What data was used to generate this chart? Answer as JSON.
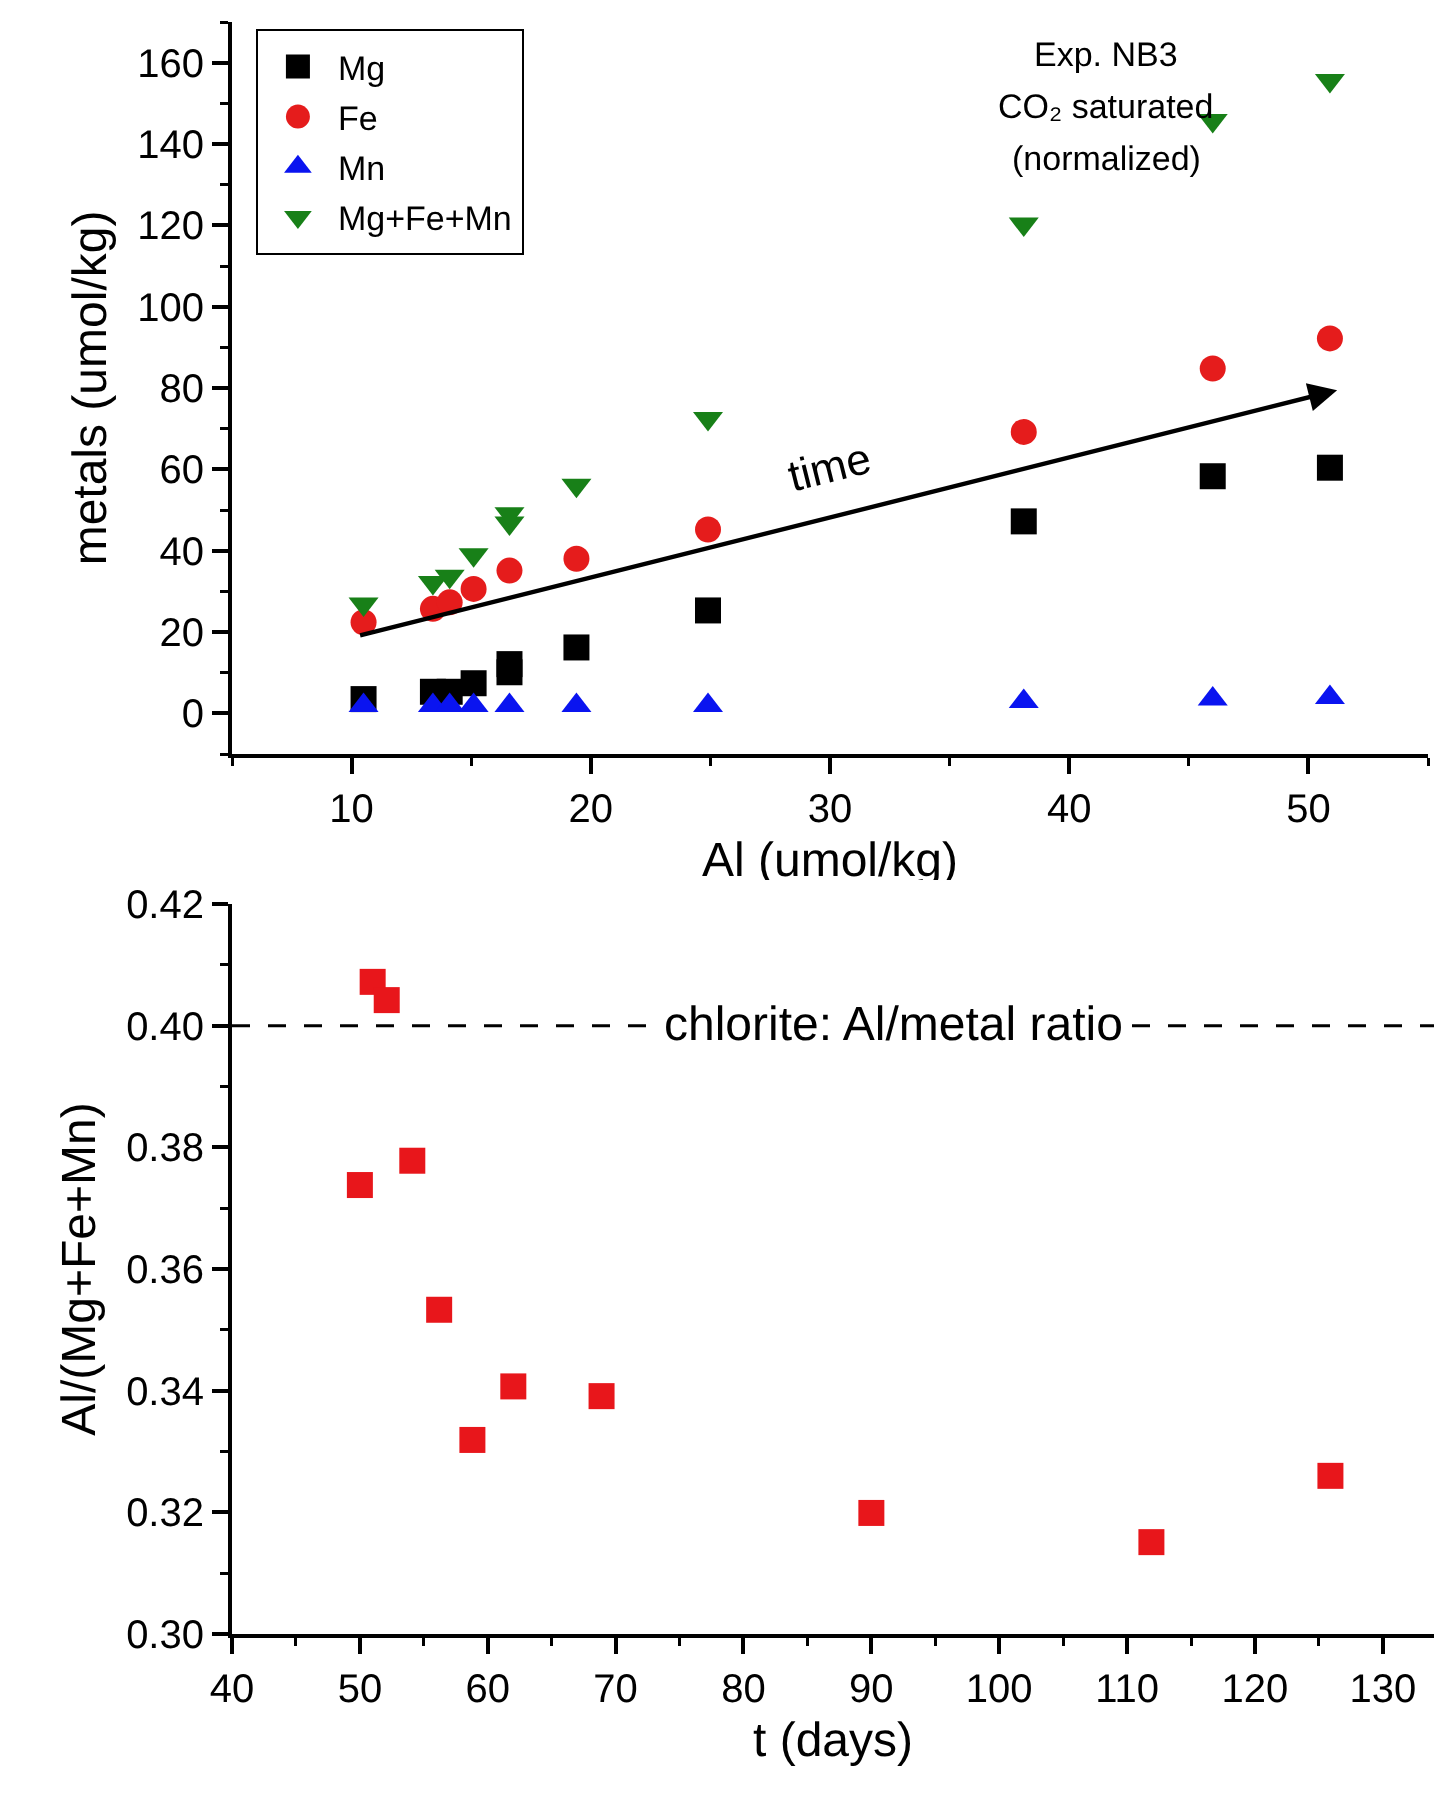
{
  "chart_data": [
    {
      "type": "scatter",
      "xlabel": "Al (umol/kg)",
      "ylabel": "metals (umol/kg)",
      "xlim": [
        5,
        55
      ],
      "xticks": [
        10,
        20,
        30,
        40,
        50
      ],
      "ylim": [
        -10,
        170
      ],
      "yticks": [
        0,
        20,
        40,
        60,
        80,
        100,
        120,
        140,
        160
      ],
      "grid": false,
      "legend": "top left",
      "annotations": [
        "Exp. NB3",
        "CO₂ saturated",
        "(normalized)",
        "time"
      ],
      "series": [
        {
          "name": "Mg",
          "color": "#000000",
          "marker": "square",
          "x": [
            10.5,
            13.4,
            14.1,
            15.1,
            16.6,
            16.6,
            19.4,
            24.9,
            38.1,
            46.0,
            50.9
          ],
          "values": [
            3.5,
            5.3,
            5.3,
            7.4,
            10.1,
            12.1,
            16.2,
            25.3,
            47.2,
            58.3,
            60.4
          ]
        },
        {
          "name": "Fe",
          "color": "#e51c1c",
          "marker": "circle",
          "x": [
            10.5,
            13.4,
            14.1,
            15.1,
            16.6,
            19.4,
            24.9,
            38.1,
            46.0,
            50.9
          ],
          "values": [
            22.4,
            25.7,
            27.3,
            30.6,
            35.1,
            38.0,
            45.2,
            69.2,
            84.8,
            92.2
          ]
        },
        {
          "name": "Mn",
          "color": "#0a14f0",
          "marker": "triangle",
          "x": [
            10.5,
            13.4,
            14.1,
            15.1,
            16.6,
            19.4,
            24.9,
            38.1,
            46.0,
            50.9
          ],
          "values": [
            1.9,
            1.9,
            1.9,
            1.9,
            1.9,
            1.9,
            1.9,
            2.9,
            3.5,
            3.9
          ]
        },
        {
          "name": "Mg+Fe+Mn",
          "color": "#188018",
          "marker": "triangle-down",
          "x": [
            10.5,
            13.4,
            14.1,
            15.1,
            16.6,
            16.6,
            19.4,
            24.9,
            38.1,
            46.0,
            50.9
          ],
          "values": [
            26.9,
            32.2,
            33.7,
            39.0,
            46.8,
            49.1,
            56.1,
            72.5,
            120.3,
            145.8,
            155.6
          ]
        }
      ]
    },
    {
      "type": "scatter",
      "xlabel": "t (days)",
      "ylabel": "Al/(Mg+Fe+Mn)",
      "xlim": [
        40,
        134
      ],
      "xticks": [
        40,
        50,
        60,
        70,
        80,
        90,
        100,
        110,
        120,
        130
      ],
      "ylim": [
        0.3,
        0.42
      ],
      "yticks": [
        {
          "value": 0.3,
          "label": "0.30"
        },
        0.32,
        0.34,
        0.36,
        0.38,
        {
          "value": 0.4,
          "label": "0.40"
        },
        0.42
      ],
      "grid": false,
      "legend": false,
      "ref_lines": [
        {
          "axis": "y",
          "value": 0.4,
          "label": "chlorite: Al/metal ratio",
          "line_style": "dashed",
          "color": "#000000"
        }
      ],
      "series": [
        {
          "color": "#e8161b",
          "marker": "square",
          "x": [
            50.0,
            51.0,
            52.1,
            54.1,
            56.2,
            58.8,
            62.0,
            68.9,
            90.0,
            111.9,
            125.9
          ],
          "values": [
            0.3738,
            0.4072,
            0.4042,
            0.3778,
            0.3533,
            0.3319,
            0.3407,
            0.3391,
            0.3199,
            0.3151,
            0.326
          ]
        }
      ]
    }
  ]
}
